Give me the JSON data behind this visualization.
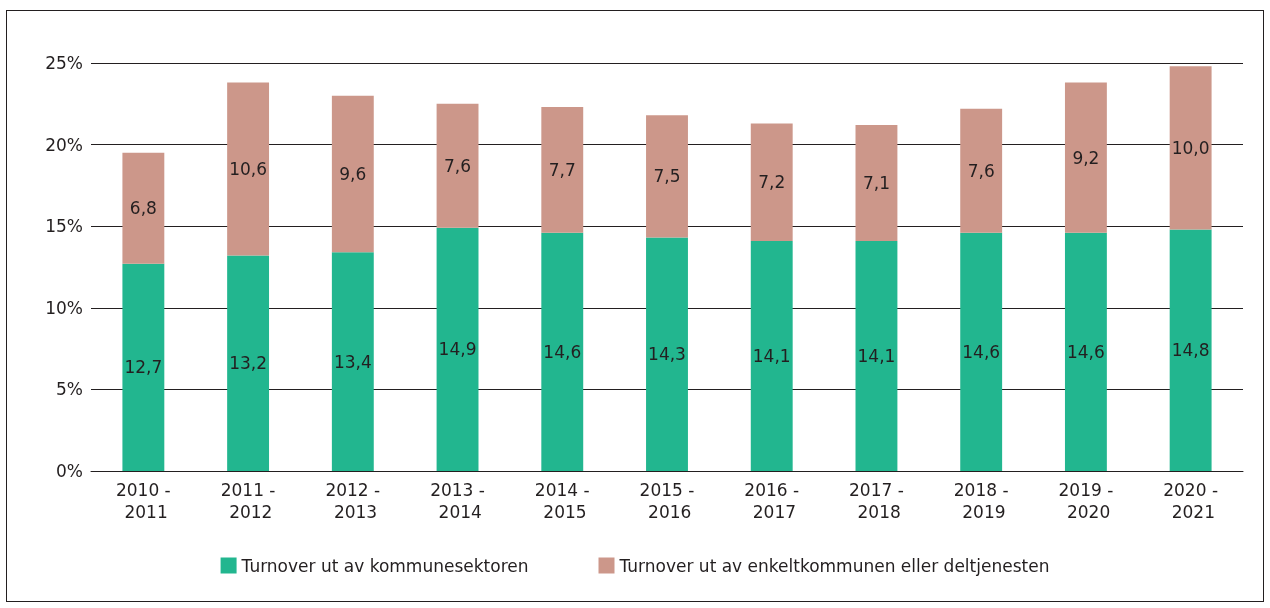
{
  "chart_data": {
    "type": "bar",
    "stacked": true,
    "categories": [
      "2010 - 2011",
      "2011 - 2012",
      "2012 - 2013",
      "2013 - 2014",
      "2014 - 2015",
      "2015 - 2016",
      "2016 - 2017",
      "2017 - 2018",
      "2018 - 2019",
      "2019 - 2020",
      "2020 - 2021"
    ],
    "series": [
      {
        "name": "Turnover ut av kommunesektoren",
        "color": "#22b68f",
        "values": [
          12.7,
          13.2,
          13.4,
          14.9,
          14.6,
          14.3,
          14.1,
          14.1,
          14.6,
          14.6,
          14.8
        ],
        "value_labels": [
          "12,7",
          "13,2",
          "13,4",
          "14,9",
          "14,6",
          "14,3",
          "14,1",
          "14,1",
          "14,6",
          "14,6",
          "14,8"
        ]
      },
      {
        "name": "Turnover ut av enkeltkommunen eller deltjenesten",
        "color": "#cc978a",
        "values": [
          6.8,
          10.6,
          9.6,
          7.6,
          7.7,
          7.5,
          7.2,
          7.1,
          7.6,
          9.2,
          10.0
        ],
        "value_labels": [
          "6,8",
          "10,6",
          "9,6",
          "7,6",
          "7,7",
          "7,5",
          "7,2",
          "7,1",
          "7,6",
          "9,2",
          "10,0"
        ]
      }
    ],
    "ylim": [
      0,
      25
    ],
    "yticks": [
      {
        "value": 0,
        "label": "0%"
      },
      {
        "value": 5,
        "label": "5%"
      },
      {
        "value": 10,
        "label": "10%"
      },
      {
        "value": 15,
        "label": "15%"
      },
      {
        "value": 20,
        "label": "20%"
      },
      {
        "value": 25,
        "label": "25%"
      }
    ],
    "grid": "y",
    "legend": "bottom"
  }
}
